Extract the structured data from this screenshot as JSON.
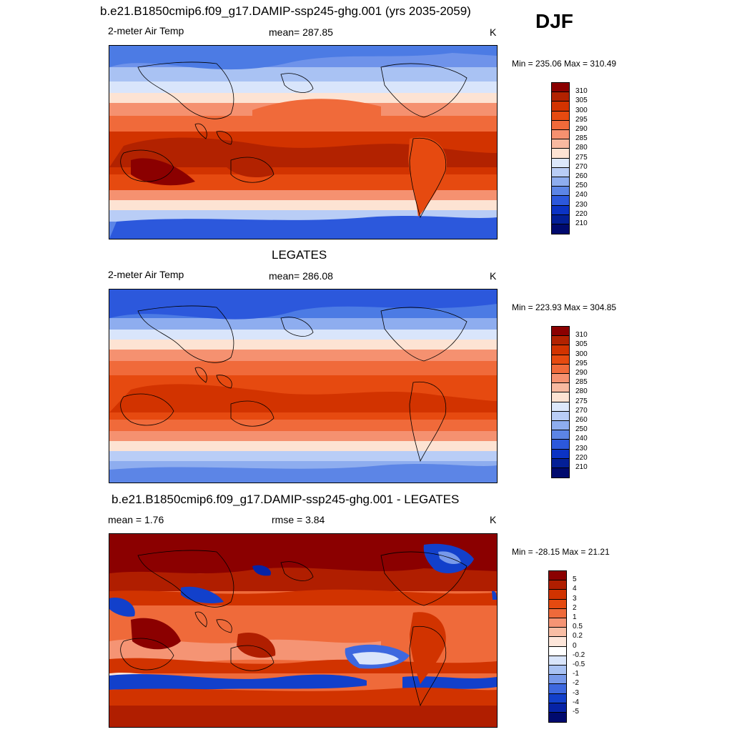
{
  "season": "DJF",
  "panels": [
    {
      "title": "b.e21.B1850cmip6.f09_g17.DAMIP-ssp245-ghg.001 (yrs 2035-2059)",
      "left_label": "2-meter Air Temp",
      "center_label": "mean= 287.85",
      "units": "K",
      "minmax": "Min = 235.06 Max = 310.49",
      "colorbar": {
        "labels": [
          "310",
          "305",
          "300",
          "295",
          "290",
          "285",
          "280",
          "275",
          "270",
          "260",
          "250",
          "240",
          "230",
          "220",
          "210"
        ],
        "colors": [
          "#8b0000",
          "#b22200",
          "#d23300",
          "#e64a10",
          "#f06a3a",
          "#f59170",
          "#f8b9a0",
          "#fde3d3",
          "#dce8fb",
          "#b9cdf6",
          "#8eadef",
          "#5c85e6",
          "#2c58dc",
          "#0b33c4",
          "#031f96",
          "#000a6e"
        ]
      }
    },
    {
      "title": "LEGATES",
      "left_label": "2-meter Air Temp",
      "center_label": "mean= 286.08",
      "units": "K",
      "minmax": "Min = 223.93 Max = 304.85",
      "colorbar": {
        "labels": [
          "310",
          "305",
          "300",
          "295",
          "290",
          "285",
          "280",
          "275",
          "270",
          "260",
          "250",
          "240",
          "230",
          "220",
          "210"
        ],
        "colors": [
          "#8b0000",
          "#b22200",
          "#d23300",
          "#e64a10",
          "#f06a3a",
          "#f59170",
          "#f8b9a0",
          "#fde3d3",
          "#dce8fb",
          "#b9cdf6",
          "#8eadef",
          "#5c85e6",
          "#2c58dc",
          "#0b33c4",
          "#031f96",
          "#000a6e"
        ]
      }
    },
    {
      "title": "b.e21.B1850cmip6.f09_g17.DAMIP-ssp245-ghg.001 - LEGATES",
      "left_label": "mean =   1.76",
      "center_label": "rmse =   3.84",
      "units": "K",
      "minmax": "Min = -28.15 Max =  21.21",
      "colorbar": {
        "labels": [
          "5",
          "4",
          "3",
          "2",
          "1",
          "0.5",
          "0.2",
          "0",
          "-0.2",
          "-0.5",
          "-1",
          "-2",
          "-3",
          "-4",
          "-5"
        ],
        "colors": [
          "#8b0000",
          "#b01e00",
          "#d13300",
          "#e54a10",
          "#ef6a3a",
          "#f59474",
          "#f8bda4",
          "#fde6da",
          "#ffffff",
          "#d9e5fb",
          "#a9c2f3",
          "#7799ea",
          "#3d68df",
          "#1240cb",
          "#0623a6",
          "#000a6e"
        ]
      }
    }
  ]
}
